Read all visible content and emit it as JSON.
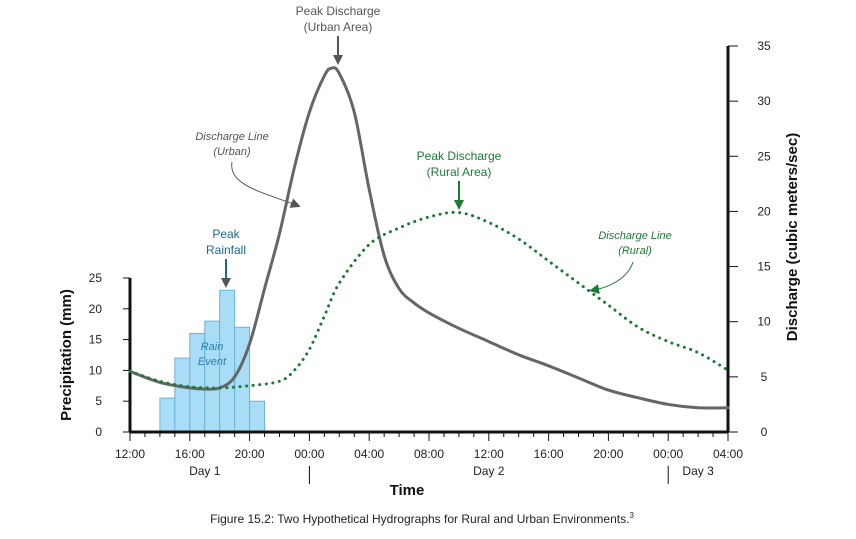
{
  "chart_data": {
    "type": "line",
    "caption": "Figure 15.2: Two Hypothetical Hydrographs for Rural and Urban Environments.",
    "caption_superscript": "3",
    "xlabel": "Time",
    "x_ticks": [
      "12:00",
      "16:00",
      "20:00",
      "00:00",
      "04:00",
      "08:00",
      "12:00",
      "16:00",
      "20:00",
      "00:00",
      "04:00"
    ],
    "x_tick_hours": [
      0,
      4,
      8,
      12,
      16,
      20,
      24,
      28,
      32,
      36,
      40
    ],
    "x_range_hours": [
      0,
      40
    ],
    "day_labels": [
      {
        "label": "Day 1",
        "center_hour": 5
      },
      {
        "label": "Day 2",
        "center_hour": 24
      },
      {
        "label": "Day 3",
        "center_hour": 38
      }
    ],
    "day_dividers_hours": [
      12,
      36
    ],
    "y_left": {
      "label": "Precipitation (mm)",
      "range": [
        0,
        25
      ],
      "ticks": [
        0,
        5,
        10,
        15,
        20,
        25
      ]
    },
    "y_right": {
      "label": "Discharge (cubic meters/sec)",
      "range": [
        0,
        35
      ],
      "ticks": [
        0,
        5,
        10,
        15,
        20,
        25,
        30,
        35
      ]
    },
    "rainfall": {
      "name": "Rain Event",
      "bins": [
        {
          "start": 2,
          "end": 3,
          "value": 5.5
        },
        {
          "start": 3,
          "end": 4,
          "value": 12
        },
        {
          "start": 4,
          "end": 5,
          "value": 16
        },
        {
          "start": 5,
          "end": 6,
          "value": 18
        },
        {
          "start": 6,
          "end": 7,
          "value": 23
        },
        {
          "start": 7,
          "end": 8,
          "value": 17
        },
        {
          "start": 8,
          "end": 9,
          "value": 5
        }
      ],
      "color": "#a8ddf5",
      "edge_color": "#6ab4d6"
    },
    "series": [
      {
        "name": "Discharge Line (Urban)",
        "style": "solid",
        "color": "#666666",
        "points": [
          [
            0,
            5.5
          ],
          [
            2,
            4.5
          ],
          [
            4,
            4
          ],
          [
            5,
            3.9
          ],
          [
            6,
            4
          ],
          [
            7,
            5
          ],
          [
            8,
            8
          ],
          [
            9,
            13
          ],
          [
            10,
            18
          ],
          [
            11,
            24
          ],
          [
            12,
            29
          ],
          [
            13,
            32.3
          ],
          [
            13.5,
            33
          ],
          [
            14,
            32.5
          ],
          [
            15,
            29
          ],
          [
            16,
            22
          ],
          [
            17,
            16
          ],
          [
            18,
            13
          ],
          [
            19,
            11.7
          ],
          [
            20,
            10.8
          ],
          [
            22,
            9.4
          ],
          [
            24,
            8.2
          ],
          [
            26,
            7
          ],
          [
            28,
            6
          ],
          [
            30,
            4.9
          ],
          [
            32,
            3.8
          ],
          [
            34,
            3.1
          ],
          [
            36,
            2.5
          ],
          [
            38,
            2.2
          ],
          [
            40,
            2.2
          ]
        ]
      },
      {
        "name": "Discharge Line (Rural)",
        "style": "dotted",
        "color": "#1d7a35",
        "points": [
          [
            0,
            5.5
          ],
          [
            2,
            4.6
          ],
          [
            4,
            4.1
          ],
          [
            6,
            4
          ],
          [
            8,
            4.2
          ],
          [
            10,
            4.6
          ],
          [
            11,
            5.6
          ],
          [
            12,
            7.5
          ],
          [
            13,
            10.5
          ],
          [
            14,
            13.5
          ],
          [
            16,
            17
          ],
          [
            18,
            18.5
          ],
          [
            20,
            19.5
          ],
          [
            22,
            19.9
          ],
          [
            24,
            19
          ],
          [
            26,
            17.5
          ],
          [
            28,
            15.5
          ],
          [
            30,
            13.5
          ],
          [
            32,
            11.5
          ],
          [
            34,
            9.5
          ],
          [
            36,
            8.2
          ],
          [
            38,
            7.2
          ],
          [
            40,
            5.6
          ]
        ]
      }
    ],
    "annotations": {
      "peak_urban": {
        "line1": "Peak Discharge",
        "line2": "(Urban Area)",
        "x_hour": 13.5,
        "color": "#666666"
      },
      "peak_rural": {
        "line1": "Peak Discharge",
        "line2": "(Rural Area)",
        "x_hour": 22,
        "color": "#1d7a35"
      },
      "peak_rain": {
        "line1": "Peak",
        "line2": "Rainfall",
        "x_hour": 6.5,
        "color": "#1e6a8a"
      },
      "urban_label": {
        "line1": "Discharge Line",
        "line2": "(Urban)",
        "color": "#555555"
      },
      "rural_label": {
        "line1": "Discharge Line",
        "line2": "(Rural)",
        "color": "#1d7a35"
      },
      "rain_label": {
        "line1": "Rain",
        "line2": "Event",
        "color": "#2a7fa8"
      }
    },
    "grid": false
  }
}
